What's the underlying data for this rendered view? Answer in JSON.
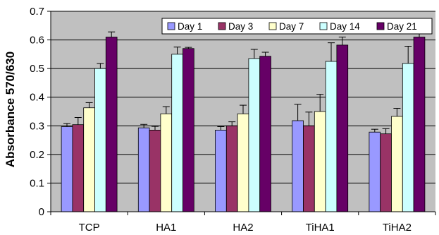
{
  "chart_data": {
    "type": "bar",
    "title": "",
    "xlabel": "",
    "ylabel": "Absorbance 570/630",
    "ylim": [
      0,
      0.7
    ],
    "yticks": [
      "0",
      "0.1",
      "0.2",
      "0.3",
      "0.4",
      "0.5",
      "0.6",
      "0.7"
    ],
    "categories": [
      "TCP",
      "HA1",
      "HA2",
      "TiHA1",
      "TiHA2"
    ],
    "grid": true,
    "legend_position": "top-right",
    "plot_background": "#c0c0c0",
    "series": [
      {
        "name": "Day 1",
        "color": "#9999ff",
        "values": [
          0.297,
          0.293,
          0.285,
          0.318,
          0.278
        ],
        "errors": [
          0.011,
          0.012,
          0.012,
          0.057,
          0.01
        ]
      },
      {
        "name": "Day 3",
        "color": "#993366",
        "values": [
          0.304,
          0.285,
          0.3,
          0.3,
          0.272
        ],
        "errors": [
          0.025,
          0.013,
          0.014,
          0.048,
          0.018
        ]
      },
      {
        "name": "Day 7",
        "color": "#ffffcc",
        "values": [
          0.363,
          0.342,
          0.342,
          0.35,
          0.333
        ],
        "errors": [
          0.018,
          0.025,
          0.03,
          0.06,
          0.028
        ]
      },
      {
        "name": "Day 14",
        "color": "#ccffff",
        "values": [
          0.5,
          0.55,
          0.535,
          0.525,
          0.518
        ],
        "errors": [
          0.018,
          0.025,
          0.032,
          0.065,
          0.06
        ]
      },
      {
        "name": "Day 21",
        "color": "#660066",
        "values": [
          0.61,
          0.57,
          0.543,
          0.582,
          0.61
        ],
        "errors": [
          0.018,
          0.004,
          0.014,
          0.028,
          0.032
        ]
      }
    ]
  }
}
